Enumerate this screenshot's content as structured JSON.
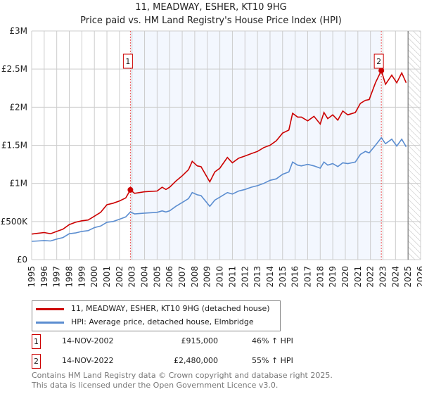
{
  "header": {
    "title": "11, MEADWAY, ESHER, KT10 9HG",
    "subtitle": "Price paid vs. HM Land Registry's House Price Index (HPI)"
  },
  "chart_data": {
    "type": "line",
    "title": "11, MEADWAY, ESHER, KT10 9HG",
    "xlim": [
      1995,
      2026
    ],
    "ylim": [
      0,
      3000000
    ],
    "x_ticks": [
      "1995",
      "1996",
      "1997",
      "1998",
      "1999",
      "2000",
      "2001",
      "2002",
      "2003",
      "2004",
      "2005",
      "2006",
      "2007",
      "2008",
      "2009",
      "2010",
      "2011",
      "2012",
      "2013",
      "2014",
      "2015",
      "2016",
      "2017",
      "2018",
      "2019",
      "2020",
      "2021",
      "2022",
      "2023",
      "2024",
      "2025",
      "2026"
    ],
    "y_ticks": [
      {
        "value": 0,
        "label": "£0"
      },
      {
        "value": 500000,
        "label": "£500K"
      },
      {
        "value": 1000000,
        "label": "£1M"
      },
      {
        "value": 1500000,
        "label": "£1.5M"
      },
      {
        "value": 2000000,
        "label": "£2M"
      },
      {
        "value": 2500000,
        "label": "£2.5M"
      },
      {
        "value": 3000000,
        "label": "£3M"
      }
    ],
    "grid": true,
    "shaded_range": [
      2002.87,
      2022.87
    ],
    "forecast_hatch_from": 2025.0,
    "series": [
      {
        "name": "11, MEADWAY, ESHER, KT10 9HG (detached house)",
        "color": "#cc0000",
        "x": [
          1995,
          1995.5,
          1996,
          1996.5,
          1997,
          1997.5,
          1998,
          1998.5,
          1999,
          1999.5,
          2000,
          2000.5,
          2001,
          2001.5,
          2002,
          2002.5,
          2002.87,
          2003.2,
          2004,
          2005,
          2005.4,
          2005.7,
          2006,
          2006.5,
          2007,
          2007.5,
          2007.8,
          2008.2,
          2008.5,
          2009.2,
          2009.6,
          2010,
          2010.6,
          2011,
          2011.5,
          2012,
          2012.5,
          2013,
          2013.5,
          2014,
          2014.5,
          2015,
          2015.5,
          2015.8,
          2016.2,
          2016.5,
          2017,
          2017.5,
          2018,
          2018.3,
          2018.6,
          2019,
          2019.4,
          2019.8,
          2020.2,
          2020.8,
          2021.2,
          2021.6,
          2021.9,
          2022.4,
          2022.87,
          2023.2,
          2023.7,
          2024.1,
          2024.5,
          2024.85
        ],
        "y": [
          335000,
          345000,
          355000,
          340000,
          370000,
          400000,
          460000,
          490000,
          510000,
          520000,
          570000,
          620000,
          720000,
          740000,
          770000,
          810000,
          915000,
          870000,
          890000,
          900000,
          950000,
          920000,
          950000,
          1030000,
          1100000,
          1180000,
          1290000,
          1230000,
          1220000,
          1020000,
          1150000,
          1200000,
          1340000,
          1270000,
          1330000,
          1360000,
          1390000,
          1420000,
          1470000,
          1500000,
          1560000,
          1660000,
          1700000,
          1920000,
          1870000,
          1870000,
          1820000,
          1880000,
          1780000,
          1930000,
          1850000,
          1900000,
          1830000,
          1950000,
          1900000,
          1930000,
          2050000,
          2090000,
          2100000,
          2320000,
          2480000,
          2300000,
          2420000,
          2320000,
          2450000,
          2320000
        ]
      },
      {
        "name": "HPI: Average price, detached house, Elmbridge",
        "color": "#5b8dd0",
        "x": [
          1995,
          1995.5,
          1996,
          1996.5,
          1997,
          1997.5,
          1998,
          1998.5,
          1999,
          1999.5,
          2000,
          2000.5,
          2001,
          2001.5,
          2002,
          2002.5,
          2002.87,
          2003.2,
          2004,
          2005,
          2005.4,
          2005.7,
          2006,
          2006.5,
          2007,
          2007.5,
          2007.8,
          2008.2,
          2008.5,
          2009.2,
          2009.6,
          2010,
          2010.6,
          2011,
          2011.5,
          2012,
          2012.5,
          2013,
          2013.5,
          2014,
          2014.5,
          2015,
          2015.5,
          2015.8,
          2016.2,
          2016.5,
          2017,
          2017.5,
          2018,
          2018.3,
          2018.6,
          2019,
          2019.4,
          2019.8,
          2020.2,
          2020.8,
          2021.2,
          2021.6,
          2021.9,
          2022.4,
          2022.87,
          2023.2,
          2023.7,
          2024.1,
          2024.5,
          2024.85
        ],
        "y": [
          240000,
          245000,
          250000,
          245000,
          270000,
          290000,
          340000,
          350000,
          370000,
          380000,
          420000,
          440000,
          490000,
          500000,
          530000,
          560000,
          625000,
          600000,
          610000,
          620000,
          640000,
          625000,
          640000,
          700000,
          750000,
          800000,
          880000,
          850000,
          840000,
          700000,
          780000,
          820000,
          880000,
          860000,
          900000,
          920000,
          950000,
          970000,
          1000000,
          1040000,
          1060000,
          1120000,
          1150000,
          1280000,
          1240000,
          1230000,
          1250000,
          1230000,
          1200000,
          1280000,
          1240000,
          1260000,
          1220000,
          1270000,
          1260000,
          1280000,
          1380000,
          1420000,
          1400000,
          1500000,
          1600000,
          1520000,
          1580000,
          1490000,
          1580000,
          1480000
        ]
      }
    ],
    "annotations": [
      {
        "label": "1",
        "x": 2002.87,
        "y": 915000
      },
      {
        "label": "2",
        "x": 2022.87,
        "y": 2480000
      }
    ]
  },
  "legend": [
    {
      "label": "11, MEADWAY, ESHER, KT10 9HG (detached house)",
      "color": "#cc0000"
    },
    {
      "label": "HPI: Average price, detached house, Elmbridge",
      "color": "#5b8dd0"
    }
  ],
  "transactions": [
    {
      "num": "1",
      "date": "14-NOV-2002",
      "price": "£915,000",
      "hpi": "46% ↑ HPI"
    },
    {
      "num": "2",
      "date": "14-NOV-2022",
      "price": "£2,480,000",
      "hpi": "55% ↑ HPI"
    }
  ],
  "footer": {
    "line1": "Contains HM Land Registry data © Crown copyright and database right 2025.",
    "line2": "This data is licensed under the Open Government Licence v3.0."
  }
}
